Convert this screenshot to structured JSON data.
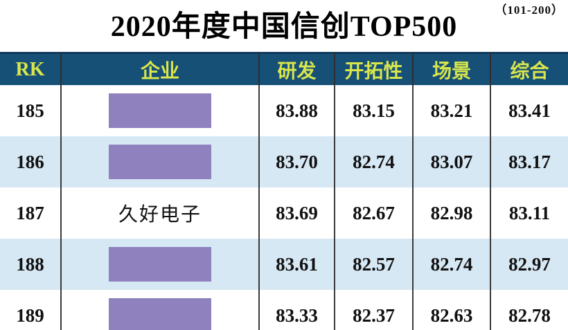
{
  "page": {
    "range_label": "（101-200）",
    "title": "2020年度中国信创TOP500"
  },
  "colors": {
    "header_bg": "#175077",
    "header_text": "#d8e64c",
    "alt_row_bg": "#d7e8f5",
    "redaction_purple": "#8e81be",
    "divider": "#3a3a3a"
  },
  "table": {
    "columns": [
      {
        "key": "rk",
        "label": "RK"
      },
      {
        "key": "company",
        "label": "企业"
      },
      {
        "key": "rd",
        "label": "研发"
      },
      {
        "key": "pioneering",
        "label": "开拓性"
      },
      {
        "key": "scene",
        "label": "场景"
      },
      {
        "key": "overall",
        "label": "综合"
      }
    ],
    "rows": [
      {
        "rk": "185",
        "company": "",
        "redacted": true,
        "rd": "83.88",
        "pioneering": "83.15",
        "scene": "83.21",
        "overall": "83.41"
      },
      {
        "rk": "186",
        "company": "",
        "redacted": true,
        "rd": "83.70",
        "pioneering": "82.74",
        "scene": "83.07",
        "overall": "83.17"
      },
      {
        "rk": "187",
        "company": "久好电子",
        "redacted": false,
        "rd": "83.69",
        "pioneering": "82.67",
        "scene": "82.98",
        "overall": "83.11"
      },
      {
        "rk": "188",
        "company": "",
        "redacted": true,
        "rd": "83.61",
        "pioneering": "82.57",
        "scene": "82.74",
        "overall": "82.97"
      },
      {
        "rk": "189",
        "company": "",
        "redacted": true,
        "rd": "83.33",
        "pioneering": "82.37",
        "scene": "82.63",
        "overall": "82.78"
      }
    ]
  },
  "chart_data": {
    "type": "table",
    "title": "2020年度中国信创TOP500",
    "subtitle": "（101-200）",
    "columns": [
      "RK",
      "企业",
      "研发",
      "开拓性",
      "场景",
      "综合"
    ],
    "rows": [
      [
        "185",
        "[redacted]",
        83.88,
        83.15,
        83.21,
        83.41
      ],
      [
        "186",
        "[redacted]",
        83.7,
        82.74,
        83.07,
        83.17
      ],
      [
        "187",
        "久好电子",
        83.69,
        82.67,
        82.98,
        83.11
      ],
      [
        "188",
        "[redacted]",
        83.61,
        82.57,
        82.74,
        82.97
      ],
      [
        "189",
        "[redacted]",
        83.33,
        82.37,
        82.63,
        82.78
      ]
    ]
  }
}
